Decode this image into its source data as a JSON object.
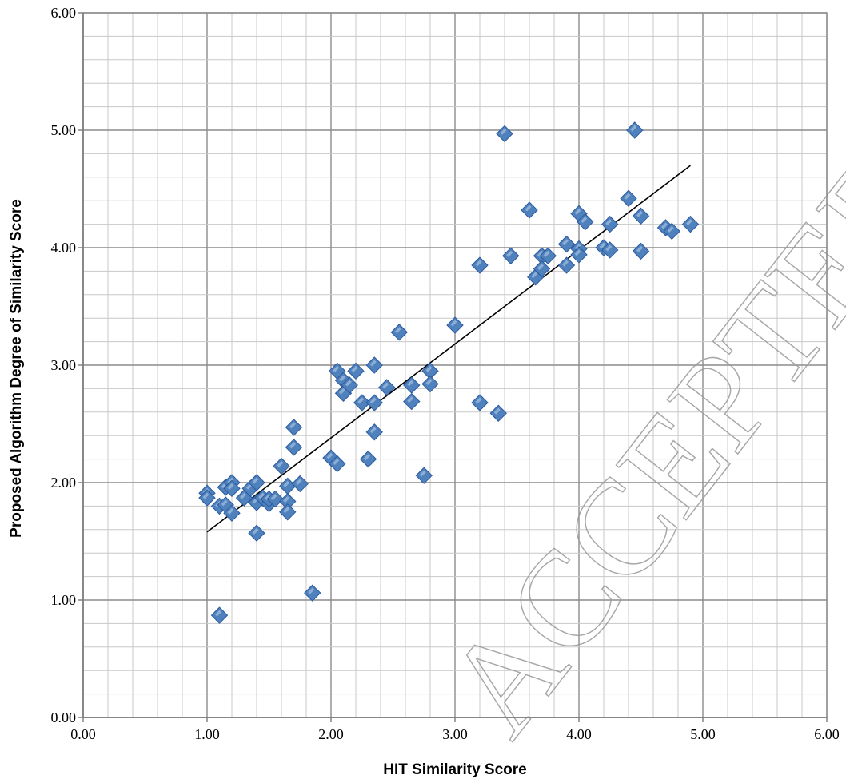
{
  "chart_data": {
    "type": "scatter",
    "xlabel": "HIT Similarity Score",
    "ylabel": "Proposed Algorithm Degree of Similarity Score",
    "xlim": [
      0,
      6
    ],
    "ylim": [
      0,
      6
    ],
    "x_ticks": [
      "0.00",
      "1.00",
      "2.00",
      "3.00",
      "4.00",
      "5.00",
      "6.00"
    ],
    "y_ticks": [
      "0.00",
      "1.00",
      "2.00",
      "3.00",
      "4.00",
      "5.00",
      "6.00"
    ],
    "grid": true,
    "minor_grid_step_x": 0.2,
    "minor_grid_step_y": 0.2,
    "marker": "diamond",
    "marker_color": "#4f81bd",
    "marker_edge_color": "#2b5aa0",
    "trendline": {
      "type": "linear",
      "x": [
        1.0,
        4.9
      ],
      "y": [
        1.58,
        4.7
      ],
      "color": "#000000"
    },
    "watermark": "ACCEPTED MANUSCRIPT",
    "points": [
      {
        "x": 1.0,
        "y": 1.91
      },
      {
        "x": 1.0,
        "y": 1.87
      },
      {
        "x": 1.1,
        "y": 1.8
      },
      {
        "x": 1.15,
        "y": 1.96
      },
      {
        "x": 1.15,
        "y": 1.81
      },
      {
        "x": 1.2,
        "y": 2.0
      },
      {
        "x": 1.2,
        "y": 1.95
      },
      {
        "x": 1.2,
        "y": 1.74
      },
      {
        "x": 1.3,
        "y": 1.87
      },
      {
        "x": 1.35,
        "y": 1.95
      },
      {
        "x": 1.4,
        "y": 2.0
      },
      {
        "x": 1.4,
        "y": 1.83
      },
      {
        "x": 1.45,
        "y": 1.87
      },
      {
        "x": 1.5,
        "y": 1.82
      },
      {
        "x": 1.5,
        "y": 1.86
      },
      {
        "x": 1.55,
        "y": 1.86
      },
      {
        "x": 1.6,
        "y": 2.14
      },
      {
        "x": 1.65,
        "y": 1.97
      },
      {
        "x": 1.65,
        "y": 1.84
      },
      {
        "x": 1.65,
        "y": 1.75
      },
      {
        "x": 1.7,
        "y": 2.47
      },
      {
        "x": 1.7,
        "y": 2.3
      },
      {
        "x": 1.75,
        "y": 1.99
      },
      {
        "x": 1.4,
        "y": 1.57
      },
      {
        "x": 1.1,
        "y": 0.87
      },
      {
        "x": 1.85,
        "y": 1.06
      },
      {
        "x": 2.0,
        "y": 2.21
      },
      {
        "x": 2.05,
        "y": 2.16
      },
      {
        "x": 2.05,
        "y": 2.95
      },
      {
        "x": 2.1,
        "y": 2.87
      },
      {
        "x": 2.1,
        "y": 2.76
      },
      {
        "x": 2.15,
        "y": 2.83
      },
      {
        "x": 2.2,
        "y": 2.95
      },
      {
        "x": 2.25,
        "y": 2.68
      },
      {
        "x": 2.3,
        "y": 2.2
      },
      {
        "x": 2.35,
        "y": 3.0
      },
      {
        "x": 2.35,
        "y": 2.68
      },
      {
        "x": 2.35,
        "y": 2.43
      },
      {
        "x": 2.45,
        "y": 2.81
      },
      {
        "x": 2.55,
        "y": 3.28
      },
      {
        "x": 2.65,
        "y": 2.83
      },
      {
        "x": 2.65,
        "y": 2.69
      },
      {
        "x": 2.75,
        "y": 2.06
      },
      {
        "x": 2.8,
        "y": 2.95
      },
      {
        "x": 2.8,
        "y": 2.84
      },
      {
        "x": 3.0,
        "y": 3.34
      },
      {
        "x": 3.2,
        "y": 3.85
      },
      {
        "x": 3.2,
        "y": 2.68
      },
      {
        "x": 3.35,
        "y": 2.59
      },
      {
        "x": 3.4,
        "y": 4.97
      },
      {
        "x": 3.45,
        "y": 3.93
      },
      {
        "x": 3.6,
        "y": 4.32
      },
      {
        "x": 3.65,
        "y": 3.75
      },
      {
        "x": 3.7,
        "y": 3.93
      },
      {
        "x": 3.7,
        "y": 3.82
      },
      {
        "x": 3.75,
        "y": 3.93
      },
      {
        "x": 3.9,
        "y": 4.03
      },
      {
        "x": 3.9,
        "y": 3.85
      },
      {
        "x": 4.0,
        "y": 4.29
      },
      {
        "x": 4.05,
        "y": 4.22
      },
      {
        "x": 4.0,
        "y": 3.99
      },
      {
        "x": 4.0,
        "y": 3.94
      },
      {
        "x": 4.2,
        "y": 4.0
      },
      {
        "x": 4.25,
        "y": 4.2
      },
      {
        "x": 4.25,
        "y": 3.98
      },
      {
        "x": 4.4,
        "y": 4.42
      },
      {
        "x": 4.45,
        "y": 5.0
      },
      {
        "x": 4.5,
        "y": 4.27
      },
      {
        "x": 4.5,
        "y": 3.97
      },
      {
        "x": 4.7,
        "y": 4.17
      },
      {
        "x": 4.75,
        "y": 4.14
      },
      {
        "x": 4.9,
        "y": 4.2
      }
    ]
  }
}
